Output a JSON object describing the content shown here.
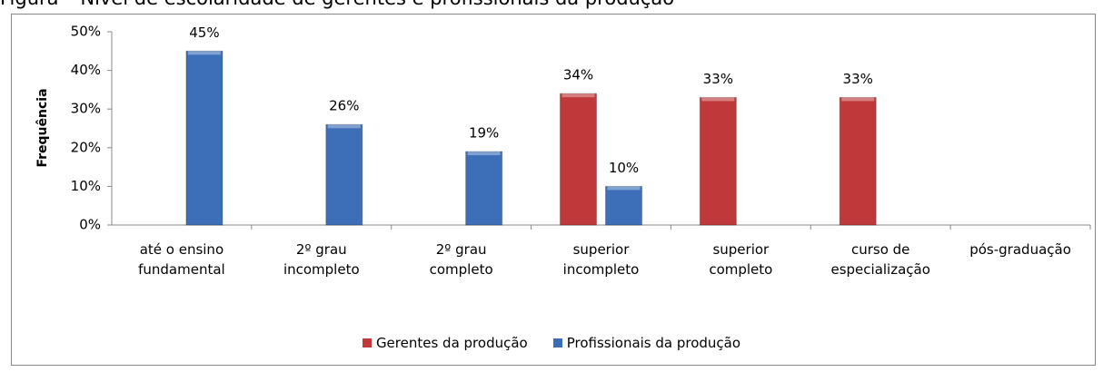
{
  "chart_data": {
    "type": "bar",
    "title": "Figura – Nível de escolaridade de gerentes e profissionais da produção",
    "y_label": "Frequência",
    "categories": [
      "até o ensino fundamental",
      "2º grau incompleto",
      "2º grau completo",
      "superior incompleto",
      "superior completo",
      "curso de especialização",
      "pós-graduação"
    ],
    "series": [
      {
        "name": "Gerentes da produção",
        "color": "#c0393a",
        "values": [
          null,
          null,
          null,
          34,
          33,
          33,
          null
        ],
        "value_labels": [
          null,
          null,
          null,
          "34%",
          "33%",
          "33%",
          null
        ]
      },
      {
        "name": "Profissionais da produção",
        "color": "#3d6fb8",
        "values": [
          45,
          26,
          19,
          10,
          null,
          null,
          null
        ],
        "value_labels": [
          "45%",
          "26%",
          "19%",
          "10%",
          null,
          null,
          null
        ]
      }
    ],
    "ylim": [
      0,
      50
    ],
    "yticks": [
      {
        "value": 0,
        "label": "0%"
      },
      {
        "value": 10,
        "label": "10%"
      },
      {
        "value": 20,
        "label": "20%"
      },
      {
        "value": 30,
        "label": "30%"
      },
      {
        "value": 40,
        "label": "40%"
      },
      {
        "value": 50,
        "label": "50%"
      }
    ],
    "legend": "bottom"
  }
}
